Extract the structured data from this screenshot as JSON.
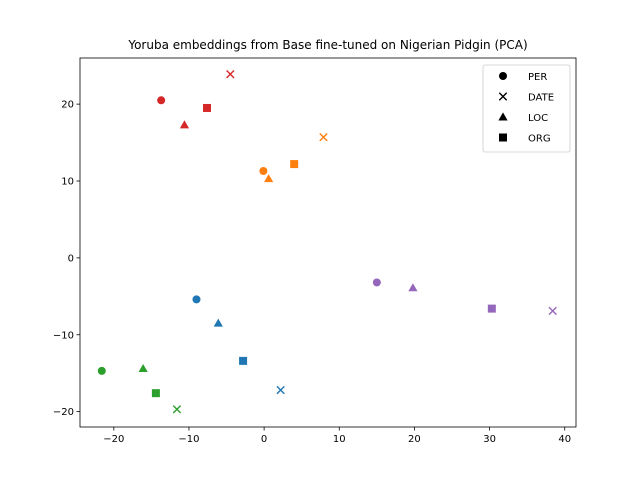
{
  "chart_data": {
    "type": "scatter",
    "title": "Yoruba embeddings from Base fine-tuned on Nigerian Pidgin (PCA)",
    "xlabel": "",
    "ylabel": "",
    "xlim": [
      -24.5,
      41.5
    ],
    "ylim": [
      -22,
      26
    ],
    "xticks": [
      -20,
      -10,
      0,
      10,
      20,
      30,
      40
    ],
    "xtick_labels": [
      "−20",
      "−10",
      "0",
      "10",
      "20",
      "30",
      "40"
    ],
    "yticks": [
      -20,
      -10,
      0,
      10,
      20
    ],
    "ytick_labels": [
      "−20",
      "−10",
      "0",
      "10",
      "20"
    ],
    "grid": false,
    "legend_position": "top-right",
    "legend": [
      {
        "label": "PER",
        "marker": "circle"
      },
      {
        "label": "DATE",
        "marker": "x"
      },
      {
        "label": "LOC",
        "marker": "triangle"
      },
      {
        "label": "ORG",
        "marker": "square"
      }
    ],
    "colors": {
      "red": "#d62728",
      "orange": "#ff7f0e",
      "blue": "#1f77b4",
      "green": "#2ca02c",
      "purple": "#9467bd"
    },
    "groups": [
      {
        "color": "red",
        "points": [
          {
            "marker": "circle",
            "x": -13.7,
            "y": 20.5
          },
          {
            "marker": "x",
            "x": -4.5,
            "y": 23.9
          },
          {
            "marker": "triangle",
            "x": -10.6,
            "y": 17.3
          },
          {
            "marker": "square",
            "x": -7.6,
            "y": 19.5
          }
        ]
      },
      {
        "color": "orange",
        "points": [
          {
            "marker": "circle",
            "x": -0.1,
            "y": 11.3
          },
          {
            "marker": "x",
            "x": 7.9,
            "y": 15.7
          },
          {
            "marker": "triangle",
            "x": 0.6,
            "y": 10.3
          },
          {
            "marker": "square",
            "x": 4.0,
            "y": 12.2
          }
        ]
      },
      {
        "color": "blue",
        "points": [
          {
            "marker": "circle",
            "x": -9.0,
            "y": -5.4
          },
          {
            "marker": "x",
            "x": 2.2,
            "y": -17.2
          },
          {
            "marker": "triangle",
            "x": -6.1,
            "y": -8.5
          },
          {
            "marker": "square",
            "x": -2.8,
            "y": -13.4
          }
        ]
      },
      {
        "color": "green",
        "points": [
          {
            "marker": "circle",
            "x": -21.6,
            "y": -14.7
          },
          {
            "marker": "x",
            "x": -11.6,
            "y": -19.7
          },
          {
            "marker": "triangle",
            "x": -16.1,
            "y": -14.4
          },
          {
            "marker": "square",
            "x": -14.4,
            "y": -17.6
          }
        ]
      },
      {
        "color": "purple",
        "points": [
          {
            "marker": "circle",
            "x": 15.0,
            "y": -3.2
          },
          {
            "marker": "x",
            "x": 38.4,
            "y": -6.9
          },
          {
            "marker": "triangle",
            "x": 19.8,
            "y": -3.9
          },
          {
            "marker": "square",
            "x": 30.3,
            "y": -6.6
          }
        ]
      }
    ]
  }
}
